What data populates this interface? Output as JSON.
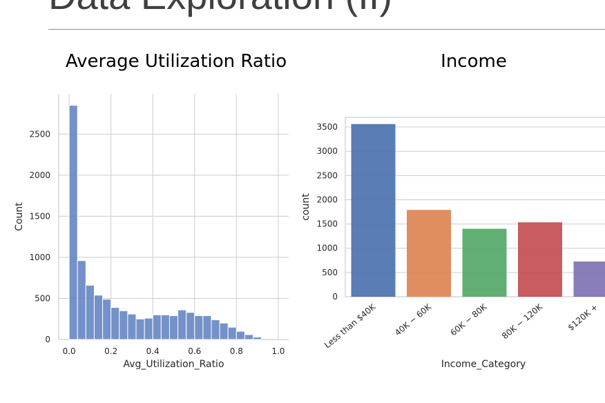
{
  "slide": {
    "title": "Data Exploration (II)"
  },
  "colors": {
    "histogram": "#5c7fbf",
    "grid": "#cccccc",
    "axis": "#cccccc",
    "bars": [
      "#4c72b0",
      "#dd8452",
      "#55a868",
      "#c44e52",
      "#8172b3"
    ]
  },
  "chart_data": [
    {
      "type": "bar",
      "subtype": "histogram",
      "title": "Average Utilization Ratio",
      "xlabel": "Avg_Utilization_Ratio",
      "ylabel": "Count",
      "bin_width": 0.04,
      "bins": [
        {
          "x0": 0.0,
          "count": 2850
        },
        {
          "x0": 0.04,
          "count": 960
        },
        {
          "x0": 0.08,
          "count": 660
        },
        {
          "x0": 0.12,
          "count": 540
        },
        {
          "x0": 0.16,
          "count": 490
        },
        {
          "x0": 0.2,
          "count": 390
        },
        {
          "x0": 0.24,
          "count": 350
        },
        {
          "x0": 0.28,
          "count": 310
        },
        {
          "x0": 0.32,
          "count": 250
        },
        {
          "x0": 0.36,
          "count": 260
        },
        {
          "x0": 0.4,
          "count": 300
        },
        {
          "x0": 0.44,
          "count": 300
        },
        {
          "x0": 0.48,
          "count": 290
        },
        {
          "x0": 0.52,
          "count": 360
        },
        {
          "x0": 0.56,
          "count": 330
        },
        {
          "x0": 0.6,
          "count": 290
        },
        {
          "x0": 0.64,
          "count": 290
        },
        {
          "x0": 0.68,
          "count": 240
        },
        {
          "x0": 0.72,
          "count": 200
        },
        {
          "x0": 0.76,
          "count": 150
        },
        {
          "x0": 0.8,
          "count": 100
        },
        {
          "x0": 0.84,
          "count": 60
        },
        {
          "x0": 0.88,
          "count": 30
        }
      ],
      "xticks": [
        "0.0",
        "0.2",
        "0.4",
        "0.6",
        "0.8",
        "1.0"
      ],
      "yticks": [
        "0",
        "500",
        "1000",
        "1500",
        "2000",
        "2500"
      ],
      "xlim": [
        -0.05,
        1.05
      ],
      "ylim": [
        0,
        2990
      ],
      "grid": true
    },
    {
      "type": "bar",
      "title": "Income",
      "xlabel": "Income_Category",
      "ylabel": "count",
      "categories": [
        "Less than $40K",
        "$40K - $60K",
        "$60K - $80K",
        "$80K - $120K",
        "$120K +"
      ],
      "tick_labels": [
        "Less than $40K",
        "40K − 60K",
        "60K − 80K",
        "80K − 120K",
        "$120K +"
      ],
      "values": [
        3561,
        1790,
        1402,
        1535,
        727
      ],
      "yticks": [
        "0",
        "500",
        "1000",
        "1500",
        "2000",
        "2500",
        "3000",
        "3500"
      ],
      "ylim": [
        0,
        3700
      ],
      "grid": true
    }
  ]
}
